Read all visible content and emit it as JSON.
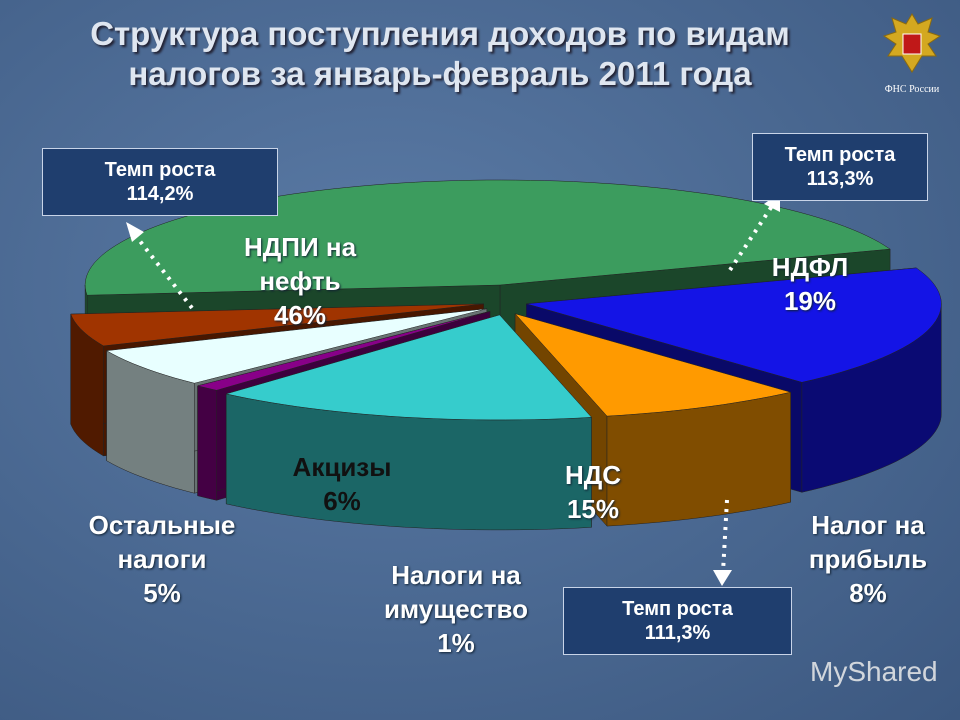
{
  "chart_data": {
    "type": "pie",
    "title": "Структура поступления доходов по видам налогов за январь-февраль 2011 года",
    "categories": [
      "НДПИ на нефть",
      "НДФЛ",
      "Налог на прибыль",
      "НДС",
      "Налоги на имущество",
      "Акцизы",
      "Остальные налоги"
    ],
    "values": [
      46,
      19,
      8,
      15,
      1,
      6,
      5
    ],
    "value_labels": [
      "46%",
      "19%",
      "8%",
      "15%",
      "1%",
      "6%",
      "5%"
    ],
    "colors": [
      "#3c9c5e",
      "#1414e6",
      "#ff9a00",
      "#36cccc",
      "#880088",
      "#e8ffff",
      "#a03400"
    ],
    "annotations": [
      [
        "Темп роста",
        "114,2%"
      ],
      [
        "Темп роста",
        "113,3%"
      ],
      [
        "Темп роста",
        "111,3%"
      ]
    ],
    "logo_text": "ФНС России",
    "watermark": "MyShared"
  }
}
